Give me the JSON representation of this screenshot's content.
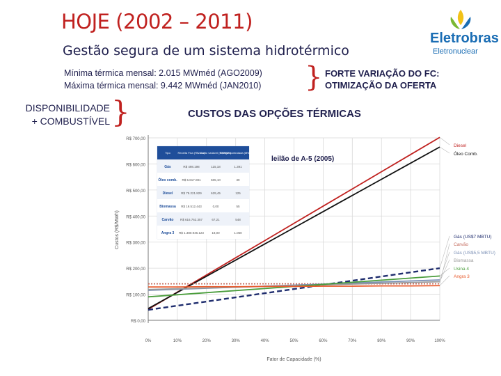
{
  "slide": {
    "title": "HOJE (2002 – 2011)",
    "subtitle": "Gestão segura de um sistema hidrotérmico"
  },
  "logo": {
    "name": "Eletrobras",
    "subname": "Eletronuclear",
    "colors": {
      "blue": "#1a6db4",
      "green": "#7ab833",
      "yellow": "#f2c218"
    }
  },
  "notes": {
    "min_line": "Mínima térmica mensal:  2.015 MWméd (AGO2009)",
    "max_line": "Máxima térmica mensal: 9.442 MWméd  (JAN2010)",
    "fc_line1": "FORTE VARIAÇÃO DO FC:",
    "fc_line2": "OTIMIZAÇÃO DA OFERTA",
    "disp_line1": "DISPONIBILIDADE",
    "disp_line2": "+ COMBUSTÍVEL",
    "costs_heading": "CUSTOS DAS OPÇÕES TÉRMICAS",
    "auction_label": "leilão de A-5 (2005)"
  },
  "chart_data": {
    "type": "line",
    "xlabel": "Fator de Capacidade (%)",
    "ylabel": "Custos (R$/MWh)",
    "x": [
      0,
      10,
      20,
      30,
      40,
      50,
      60,
      70,
      80,
      90,
      100
    ],
    "x_ticks": [
      "0%",
      "10%",
      "20%",
      "30%",
      "40%",
      "50%",
      "60%",
      "70%",
      "80%",
      "90%",
      "100%"
    ],
    "y_ticks": [
      "R$ 0,00",
      "R$ 100,00",
      "R$ 200,00",
      "R$ 300,00",
      "R$ 400,00",
      "R$ 500,00",
      "R$ 600,00",
      "R$ 700,00"
    ],
    "ylim": [
      0,
      700
    ],
    "grid": true,
    "series": [
      {
        "name": "Diesel",
        "color": "#c0211f",
        "style": "solid",
        "values": [
          42,
          108,
          174,
          240,
          306,
          372,
          438,
          504,
          570,
          636,
          702
        ]
      },
      {
        "name": "Óleo Comb.",
        "color": "#111111",
        "style": "solid",
        "values": [
          45,
          107,
          169,
          231,
          293,
          355,
          417,
          479,
          541,
          603,
          665
        ]
      },
      {
        "name": "Gás (US$7 MBTU)",
        "color": "#1f2d6e",
        "style": "dash",
        "values": [
          40,
          56,
          72,
          88,
          104,
          120,
          136,
          152,
          168,
          184,
          200
        ]
      },
      {
        "name": "Carvão",
        "color": "#c46a5c",
        "style": "dot",
        "values": [
          140,
          140,
          140,
          140,
          140,
          140,
          140,
          140,
          140,
          140,
          140
        ]
      },
      {
        "name": "Gás (US$5,5 MBTU)",
        "color": "#7a8fb5",
        "style": "solid",
        "values": [
          115,
          119,
          123,
          127,
          131,
          135,
          139,
          143,
          147,
          151,
          155
        ]
      },
      {
        "name": "Biomassa",
        "color": "#999999",
        "style": "solid",
        "values": [
          118,
          121,
          124,
          127,
          130,
          133,
          136,
          139,
          142,
          145,
          148
        ]
      },
      {
        "name": "Usina 4",
        "color": "#4a9d3c",
        "style": "solid",
        "values": [
          90,
          98,
          106,
          114,
          122,
          130,
          138,
          146,
          154,
          162,
          170
        ]
      },
      {
        "name": "Angra 3",
        "color": "#e85a2c",
        "style": "solid",
        "values": [
          128,
          128,
          129,
          129,
          130,
          130,
          131,
          131,
          132,
          132,
          133
        ]
      }
    ],
    "table": {
      "headers": [
        "Tipo",
        "Receita Fixa (R$/ano)",
        "Custo variável (R$/MWh)",
        "Energia contratada (MWmed)"
      ],
      "rows": [
        [
          "Gás",
          "R$ 498.198",
          "115,18",
          "1.391"
        ],
        [
          "Óleo comb.",
          "R$ 5.817.081",
          "505,10",
          "39"
        ],
        [
          "Diesel",
          "R$ 75.221.829",
          "629,45",
          "125"
        ],
        [
          "Biomassa",
          "R$ 19.512.443",
          "0,00",
          "55"
        ],
        [
          "Carvão",
          "R$ 616.762.357",
          "67,21",
          "548"
        ],
        [
          "Angra 3",
          "R$ 1.380.946.123",
          "18,00",
          "1.060"
        ]
      ]
    }
  }
}
